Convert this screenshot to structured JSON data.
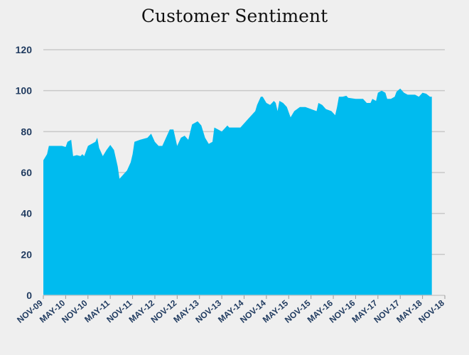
{
  "chart_data": {
    "type": "area",
    "title": "Customer Sentiment",
    "xlabel": "",
    "ylabel": "",
    "ylim": [
      0,
      120
    ],
    "yticks": [
      0,
      20,
      40,
      60,
      80,
      100,
      120
    ],
    "grid": true,
    "x_tick_labels": [
      "NOV-09",
      "MAY-10",
      "NOV-10",
      "MAY-11",
      "NOV-11",
      "MAY-12",
      "NOV-12",
      "MAY-13",
      "NOV-13",
      "MAY-14",
      "NOV-14",
      "MAY-15",
      "NOV-15",
      "MAY-16",
      "NOV-16",
      "MAY-17",
      "NOV-17",
      "MAY-18",
      "NOV-18"
    ],
    "x_range_months": [
      0,
      108
    ],
    "fill_color": "#00bbef",
    "grid_color": "#c8c8c8",
    "series": [
      {
        "points": [
          [
            0,
            66
          ],
          [
            1,
            69
          ],
          [
            1.5,
            73
          ],
          [
            3,
            73
          ],
          [
            5,
            73
          ],
          [
            6,
            72.5
          ],
          [
            6.5,
            75
          ],
          [
            7.5,
            76
          ],
          [
            8,
            68
          ],
          [
            9,
            68.5
          ],
          [
            10,
            68
          ],
          [
            10.5,
            69
          ],
          [
            11,
            68
          ],
          [
            12,
            73
          ],
          [
            13,
            74
          ],
          [
            14,
            75
          ],
          [
            14.5,
            77
          ],
          [
            15,
            72
          ],
          [
            16,
            68
          ],
          [
            17,
            71
          ],
          [
            18,
            73.5
          ],
          [
            19,
            71
          ],
          [
            20,
            63
          ],
          [
            20.5,
            57
          ],
          [
            21.5,
            59
          ],
          [
            22.5,
            61
          ],
          [
            23.5,
            65
          ],
          [
            24,
            69
          ],
          [
            24.5,
            75
          ],
          [
            26,
            76
          ],
          [
            28,
            77
          ],
          [
            29,
            79
          ],
          [
            30,
            75
          ],
          [
            31,
            73
          ],
          [
            32,
            73
          ],
          [
            33,
            77
          ],
          [
            34,
            81
          ],
          [
            35,
            81
          ],
          [
            36,
            73
          ],
          [
            37,
            77
          ],
          [
            38,
            78
          ],
          [
            39,
            76
          ],
          [
            40,
            83.5
          ],
          [
            41.5,
            85
          ],
          [
            42,
            84
          ],
          [
            42.5,
            83
          ],
          [
            43.5,
            77
          ],
          [
            44.5,
            74
          ],
          [
            45.5,
            75
          ],
          [
            46,
            82
          ],
          [
            47,
            81
          ],
          [
            48,
            80
          ],
          [
            49.5,
            83
          ],
          [
            50,
            82
          ],
          [
            51,
            82
          ],
          [
            52,
            82
          ],
          [
            53,
            82
          ],
          [
            55,
            86
          ],
          [
            57,
            90
          ],
          [
            57.5,
            93
          ],
          [
            58.5,
            97
          ],
          [
            59,
            97
          ],
          [
            60,
            94
          ],
          [
            61,
            93
          ],
          [
            62,
            95
          ],
          [
            62.5,
            94
          ],
          [
            63,
            90
          ],
          [
            63.5,
            95
          ],
          [
            64.5,
            94
          ],
          [
            65.5,
            92
          ],
          [
            66.5,
            87
          ],
          [
            67.5,
            90
          ],
          [
            69,
            92
          ],
          [
            70.5,
            92
          ],
          [
            72,
            91
          ],
          [
            73.5,
            90
          ],
          [
            74,
            94
          ],
          [
            75,
            93
          ],
          [
            76,
            91
          ],
          [
            77.5,
            90
          ],
          [
            78.5,
            88
          ],
          [
            79,
            92
          ],
          [
            79.5,
            97
          ],
          [
            80.5,
            97
          ],
          [
            81.5,
            97.5
          ],
          [
            82,
            96.5
          ],
          [
            84,
            96
          ],
          [
            86,
            96
          ],
          [
            87,
            94
          ],
          [
            88,
            94
          ],
          [
            88.5,
            96
          ],
          [
            89.5,
            95
          ],
          [
            90,
            99
          ],
          [
            91,
            100
          ],
          [
            92,
            99
          ],
          [
            92.5,
            96
          ],
          [
            93.5,
            96
          ],
          [
            94.5,
            97
          ],
          [
            95,
            99.5
          ],
          [
            96,
            101
          ],
          [
            97,
            99
          ],
          [
            98,
            98
          ],
          [
            100,
            98
          ],
          [
            101,
            97
          ],
          [
            102,
            99
          ],
          [
            103,
            98.5
          ],
          [
            104,
            97
          ],
          [
            104.5,
            97
          ]
        ]
      }
    ]
  }
}
